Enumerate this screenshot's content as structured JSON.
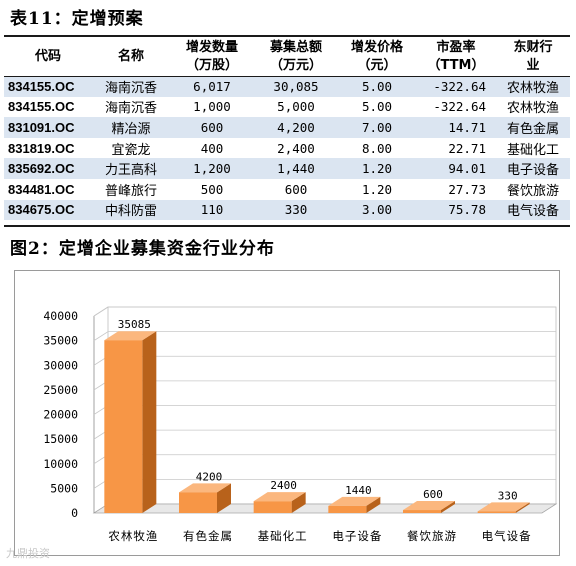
{
  "section1": {
    "title": "表11：定增预案"
  },
  "table": {
    "headers": [
      [
        "代码",
        ""
      ],
      [
        "名称",
        ""
      ],
      [
        "增发数量",
        "（万股）"
      ],
      [
        "募集总额",
        "（万元）"
      ],
      [
        "增发价格",
        "（元）"
      ],
      [
        "市盈率",
        "（TTM）"
      ],
      [
        "东财行",
        "业"
      ]
    ],
    "rows": [
      [
        "834155.OC",
        "海南沉香",
        "6,017",
        "30,085",
        "5.00",
        "-322.64",
        "农林牧渔"
      ],
      [
        "834155.OC",
        "海南沉香",
        "1,000",
        "5,000",
        "5.00",
        "-322.64",
        "农林牧渔"
      ],
      [
        "831091.OC",
        "精冶源",
        "600",
        "4,200",
        "7.00",
        "14.71",
        "有色金属"
      ],
      [
        "831819.OC",
        "宜瓷龙",
        "400",
        "2,400",
        "8.00",
        "22.71",
        "基础化工"
      ],
      [
        "835692.OC",
        "力王高科",
        "1,200",
        "1,440",
        "1.20",
        "94.01",
        "电子设备"
      ],
      [
        "834481.OC",
        "普峰旅行",
        "500",
        "600",
        "1.20",
        "27.73",
        "餐饮旅游"
      ],
      [
        "834675.OC",
        "中科防雷",
        "110",
        "330",
        "3.00",
        "75.78",
        "电气设备"
      ]
    ]
  },
  "section2": {
    "title": "图2：定增企业募集资金行业分布"
  },
  "chart_data": {
    "type": "bar",
    "categories": [
      "农林牧渔",
      "有色金属",
      "基础化工",
      "电子设备",
      "餐饮旅游",
      "电气设备"
    ],
    "values": [
      35085,
      4200,
      2400,
      1440,
      600,
      330
    ],
    "data_labels": [
      "35085",
      "4200",
      "2400",
      "1440",
      "600",
      "330"
    ],
    "yticks": [
      "0",
      "5000",
      "10000",
      "15000",
      "20000",
      "25000",
      "30000",
      "35000",
      "40000"
    ],
    "ylim": [
      0,
      40000
    ],
    "grid": true,
    "style": "3d",
    "colors": {
      "front": "#f79646",
      "side": "#b8621b",
      "top": "#fbb77e"
    }
  },
  "watermark": "九鼎投资"
}
